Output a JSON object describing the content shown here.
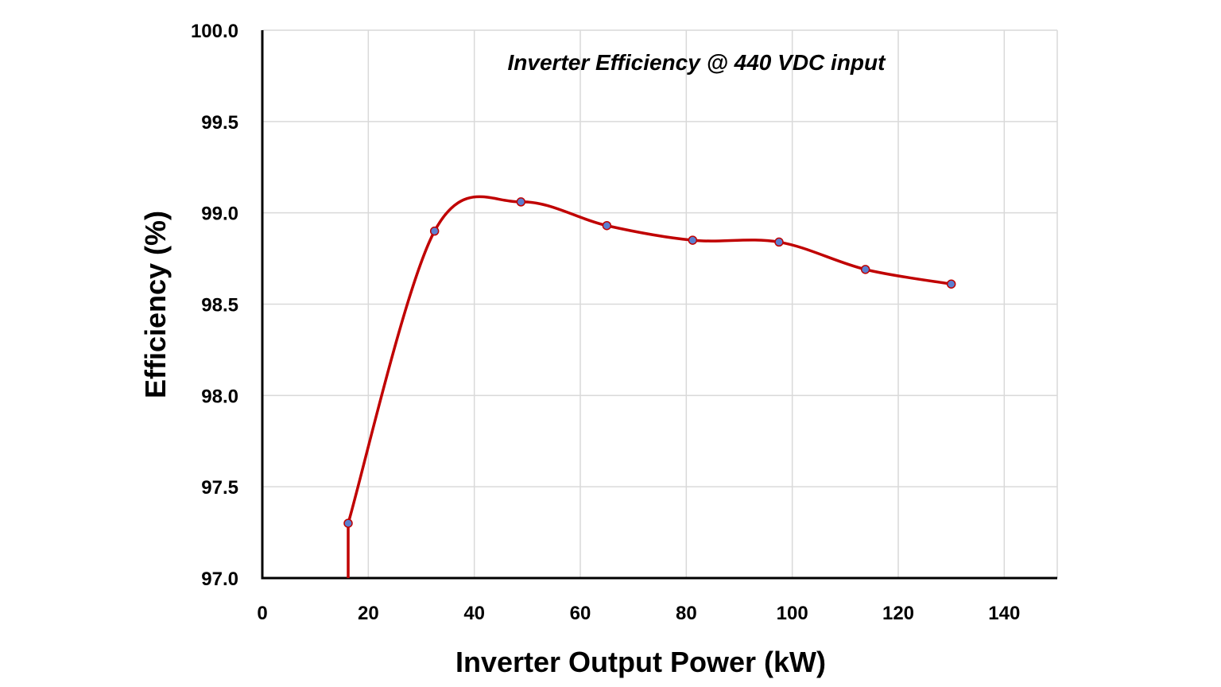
{
  "chart_data": {
    "type": "line",
    "title": "Inverter Efficiency @ 440 VDC input",
    "xlabel": "Inverter Output Power (kW)",
    "ylabel": "Efficiency (%)",
    "xlim": [
      0,
      150
    ],
    "ylim": [
      97.0,
      100.0
    ],
    "x_ticks": [
      0,
      20,
      40,
      60,
      80,
      100,
      120,
      140
    ],
    "x_tick_labels": [
      "0",
      "20",
      "40",
      "60",
      "80",
      "100",
      "120",
      "140"
    ],
    "y_ticks": [
      97.0,
      97.5,
      98.0,
      98.5,
      99.0,
      99.5,
      100.0
    ],
    "y_tick_labels": [
      "97.0",
      "97.5",
      "98.0",
      "98.5",
      "99.0",
      "99.5",
      "100.0"
    ],
    "grid": true,
    "smooth": true,
    "series": [
      {
        "x": [
          16.2,
          32.5,
          48.8,
          65.0,
          81.2,
          97.5,
          113.8,
          130.0
        ],
        "y": [
          97.3,
          98.9,
          99.06,
          98.93,
          98.85,
          98.84,
          98.69,
          98.61
        ],
        "line_color": "#c00000",
        "marker_color": "#5b7fd0"
      }
    ]
  }
}
